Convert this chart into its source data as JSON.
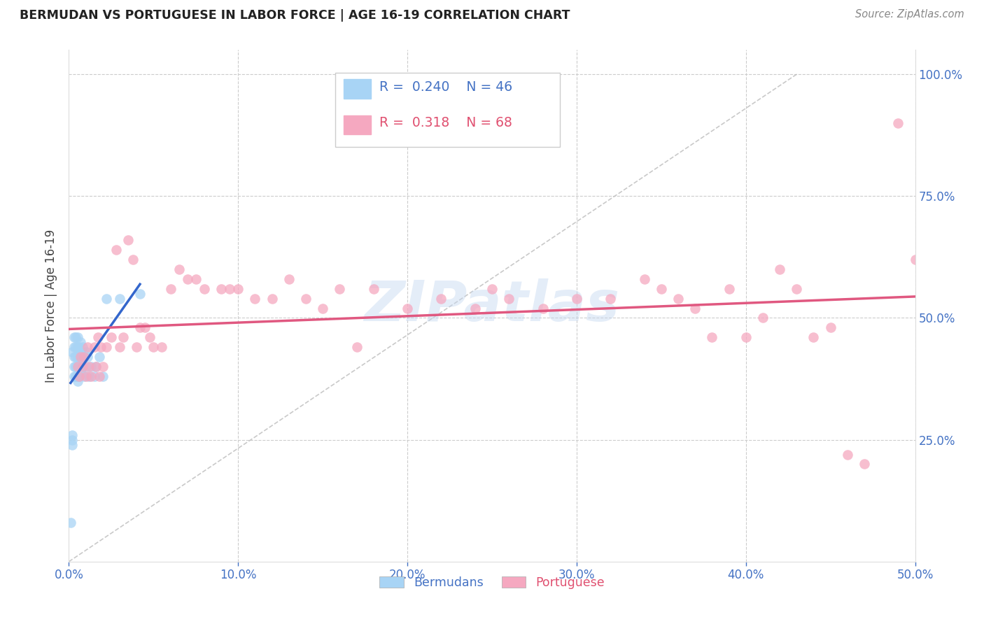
{
  "title": "BERMUDAN VS PORTUGUESE IN LABOR FORCE | AGE 16-19 CORRELATION CHART",
  "source": "Source: ZipAtlas.com",
  "ylabel": "In Labor Force | Age 16-19",
  "xlim": [
    0.0,
    0.5
  ],
  "ylim": [
    0.0,
    1.05
  ],
  "xtick_vals": [
    0.0,
    0.1,
    0.2,
    0.3,
    0.4,
    0.5
  ],
  "xtick_labels": [
    "0.0%",
    "10.0%",
    "20.0%",
    "30.0%",
    "40.0%",
    "50.0%"
  ],
  "ytick_vals": [
    0.0,
    0.25,
    0.5,
    0.75,
    1.0
  ],
  "ytick_labels": [
    "",
    "25.0%",
    "50.0%",
    "75.0%",
    "100.0%"
  ],
  "R_bermudan": 0.24,
  "N_bermudan": 46,
  "R_portuguese": 0.318,
  "N_portuguese": 68,
  "bermudan_color": "#a8d4f5",
  "portuguese_color": "#f5a8c0",
  "bermudan_line_color": "#3366cc",
  "portuguese_line_color": "#e05880",
  "diagonal_color": "#c0c0c0",
  "watermark": "ZIPatlas",
  "berm_x": [
    0.001,
    0.002,
    0.002,
    0.002,
    0.002,
    0.003,
    0.003,
    0.003,
    0.003,
    0.003,
    0.004,
    0.004,
    0.004,
    0.004,
    0.004,
    0.005,
    0.005,
    0.005,
    0.005,
    0.005,
    0.005,
    0.006,
    0.006,
    0.006,
    0.006,
    0.007,
    0.007,
    0.007,
    0.007,
    0.008,
    0.008,
    0.008,
    0.009,
    0.009,
    0.01,
    0.01,
    0.011,
    0.012,
    0.013,
    0.015,
    0.016,
    0.018,
    0.02,
    0.022,
    0.03,
    0.042
  ],
  "berm_y": [
    0.08,
    0.24,
    0.25,
    0.26,
    0.43,
    0.38,
    0.4,
    0.42,
    0.44,
    0.46,
    0.38,
    0.4,
    0.42,
    0.44,
    0.46,
    0.37,
    0.38,
    0.4,
    0.42,
    0.44,
    0.46,
    0.38,
    0.4,
    0.42,
    0.44,
    0.39,
    0.41,
    0.43,
    0.45,
    0.4,
    0.42,
    0.44,
    0.38,
    0.42,
    0.4,
    0.43,
    0.42,
    0.38,
    0.4,
    0.38,
    0.4,
    0.42,
    0.38,
    0.54,
    0.54,
    0.55
  ],
  "port_x": [
    0.005,
    0.006,
    0.007,
    0.008,
    0.009,
    0.01,
    0.011,
    0.012,
    0.013,
    0.015,
    0.016,
    0.017,
    0.018,
    0.019,
    0.02,
    0.022,
    0.025,
    0.028,
    0.03,
    0.032,
    0.035,
    0.038,
    0.04,
    0.042,
    0.045,
    0.048,
    0.05,
    0.055,
    0.06,
    0.065,
    0.07,
    0.075,
    0.08,
    0.09,
    0.095,
    0.1,
    0.11,
    0.12,
    0.13,
    0.14,
    0.15,
    0.16,
    0.17,
    0.18,
    0.2,
    0.22,
    0.24,
    0.25,
    0.26,
    0.28,
    0.3,
    0.32,
    0.34,
    0.35,
    0.36,
    0.37,
    0.38,
    0.39,
    0.4,
    0.41,
    0.42,
    0.43,
    0.44,
    0.45,
    0.46,
    0.47,
    0.49,
    0.5
  ],
  "port_y": [
    0.4,
    0.38,
    0.42,
    0.4,
    0.42,
    0.38,
    0.44,
    0.4,
    0.38,
    0.44,
    0.4,
    0.46,
    0.38,
    0.44,
    0.4,
    0.44,
    0.46,
    0.64,
    0.44,
    0.46,
    0.66,
    0.62,
    0.44,
    0.48,
    0.48,
    0.46,
    0.44,
    0.44,
    0.56,
    0.6,
    0.58,
    0.58,
    0.56,
    0.56,
    0.56,
    0.56,
    0.54,
    0.54,
    0.58,
    0.54,
    0.52,
    0.56,
    0.44,
    0.56,
    0.52,
    0.54,
    0.52,
    0.56,
    0.54,
    0.52,
    0.54,
    0.54,
    0.58,
    0.56,
    0.54,
    0.52,
    0.46,
    0.56,
    0.46,
    0.5,
    0.6,
    0.56,
    0.46,
    0.48,
    0.22,
    0.2,
    0.9,
    0.62
  ]
}
